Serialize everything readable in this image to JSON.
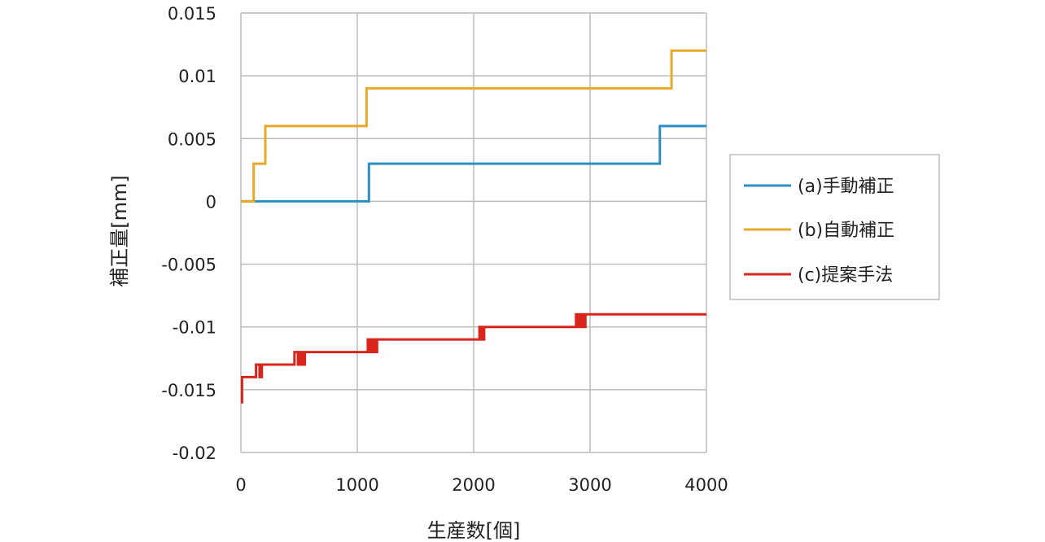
{
  "chart_data": {
    "type": "line",
    "title": "",
    "xlabel": "生産数[個]",
    "ylabel": "補正量[mm]",
    "xlim": [
      0,
      4000
    ],
    "ylim": [
      -0.02,
      0.015
    ],
    "xticks": [
      0,
      1000,
      2000,
      3000,
      4000
    ],
    "xtick_labels": [
      "0",
      "1000",
      "2000",
      "3000",
      "4000"
    ],
    "yticks": [
      0.015,
      0.01,
      0.005,
      0,
      -0.005,
      -0.01,
      -0.015,
      -0.02
    ],
    "ytick_labels": [
      "0.015",
      "0.01",
      "0.005",
      "0",
      "-0.005",
      "-0.01",
      "-0.015",
      "-0.02"
    ],
    "grid": true,
    "legend_position": "right",
    "series": [
      {
        "name": "(a)手動補正",
        "color": "#2b8fc6",
        "step": true,
        "points": [
          [
            0,
            0
          ],
          [
            1100,
            0
          ],
          [
            1100,
            0.003
          ],
          [
            3600,
            0.003
          ],
          [
            3600,
            0.006
          ],
          [
            4000,
            0.006
          ]
        ]
      },
      {
        "name": "(b)自動補正",
        "color": "#e8a92a",
        "step": true,
        "points": [
          [
            0,
            0
          ],
          [
            110,
            0
          ],
          [
            110,
            0.003
          ],
          [
            210,
            0.003
          ],
          [
            210,
            0.006
          ],
          [
            1080,
            0.006
          ],
          [
            1080,
            0.009
          ],
          [
            3700,
            0.009
          ],
          [
            3700,
            0.012
          ],
          [
            4000,
            0.012
          ]
        ]
      },
      {
        "name": "(c)提案手法",
        "color": "#d9261c",
        "step": true,
        "points": [
          [
            0,
            -0.016
          ],
          [
            10,
            -0.016
          ],
          [
            10,
            -0.014
          ],
          [
            130,
            -0.014
          ],
          [
            130,
            -0.013
          ],
          [
            160,
            -0.013
          ],
          [
            160,
            -0.014
          ],
          [
            180,
            -0.014
          ],
          [
            180,
            -0.013
          ],
          [
            460,
            -0.013
          ],
          [
            460,
            -0.012
          ],
          [
            490,
            -0.012
          ],
          [
            490,
            -0.013
          ],
          [
            510,
            -0.013
          ],
          [
            510,
            -0.012
          ],
          [
            530,
            -0.012
          ],
          [
            530,
            -0.013
          ],
          [
            550,
            -0.013
          ],
          [
            550,
            -0.012
          ],
          [
            1090,
            -0.012
          ],
          [
            1090,
            -0.011
          ],
          [
            1110,
            -0.011
          ],
          [
            1110,
            -0.012
          ],
          [
            1130,
            -0.012
          ],
          [
            1130,
            -0.011
          ],
          [
            1150,
            -0.011
          ],
          [
            1150,
            -0.012
          ],
          [
            1170,
            -0.012
          ],
          [
            1170,
            -0.011
          ],
          [
            2050,
            -0.011
          ],
          [
            2050,
            -0.01
          ],
          [
            2070,
            -0.01
          ],
          [
            2070,
            -0.011
          ],
          [
            2090,
            -0.011
          ],
          [
            2090,
            -0.01
          ],
          [
            2880,
            -0.01
          ],
          [
            2880,
            -0.009
          ],
          [
            2900,
            -0.009
          ],
          [
            2900,
            -0.01
          ],
          [
            2920,
            -0.01
          ],
          [
            2920,
            -0.009
          ],
          [
            2940,
            -0.009
          ],
          [
            2940,
            -0.01
          ],
          [
            2960,
            -0.01
          ],
          [
            2960,
            -0.009
          ],
          [
            4000,
            -0.009
          ]
        ]
      }
    ]
  }
}
